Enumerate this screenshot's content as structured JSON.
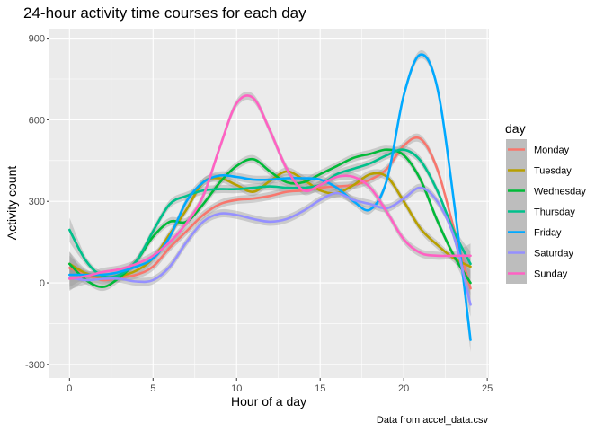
{
  "chart_data": {
    "type": "line",
    "title": "24-hour activity time courses for each day",
    "xlabel": "Hour of a day",
    "ylabel": "Activity count",
    "caption": "Data from accel_data.csv",
    "xlim": [
      -1.2,
      25.1
    ],
    "ylim": [
      -350,
      935
    ],
    "x_ticks": [
      0,
      5,
      10,
      15,
      20,
      25
    ],
    "x_tick_labels": [
      "0",
      "5",
      "10",
      "15",
      "20",
      "25"
    ],
    "y_ticks": [
      -300,
      0,
      300,
      600,
      900
    ],
    "y_tick_labels": [
      "-300",
      "0",
      "300",
      "600",
      "900"
    ],
    "grid": true,
    "legend": {
      "title": "day",
      "position": "right"
    },
    "series": [
      {
        "name": "Monday",
        "color": "#F8766D",
        "x": [
          0,
          1,
          2,
          3,
          4,
          5,
          6,
          7,
          8,
          9,
          10,
          11,
          12,
          13,
          14,
          15,
          16,
          17,
          18,
          19,
          20,
          21,
          22,
          23,
          24
        ],
        "y": [
          55,
          30,
          10,
          20,
          30,
          60,
          130,
          190,
          250,
          290,
          305,
          310,
          320,
          335,
          340,
          350,
          355,
          360,
          380,
          420,
          505,
          530,
          420,
          200,
          -20
        ]
      },
      {
        "name": "Tuesday",
        "color": "#B79F00",
        "x": [
          0,
          1,
          2,
          3,
          4,
          5,
          6,
          7,
          8,
          9,
          10,
          11,
          12,
          13,
          14,
          15,
          16,
          17,
          18,
          19,
          20,
          21,
          22,
          23,
          24
        ],
        "y": [
          70,
          35,
          20,
          25,
          45,
          90,
          180,
          270,
          370,
          385,
          360,
          335,
          375,
          410,
          380,
          340,
          330,
          360,
          400,
          390,
          300,
          200,
          140,
          90,
          60
        ]
      },
      {
        "name": "Wednesday",
        "color": "#00BA38",
        "x": [
          0,
          1,
          2,
          3,
          4,
          5,
          6,
          7,
          8,
          9,
          10,
          11,
          12,
          13,
          14,
          15,
          16,
          17,
          18,
          19,
          20,
          21,
          22,
          23,
          24
        ],
        "y": [
          70,
          10,
          -15,
          20,
          80,
          170,
          225,
          225,
          290,
          370,
          430,
          455,
          410,
          370,
          370,
          400,
          430,
          460,
          475,
          490,
          470,
          380,
          230,
          100,
          0
        ]
      },
      {
        "name": "Thursday",
        "color": "#00C08B",
        "x": [
          0,
          1,
          2,
          3,
          4,
          5,
          6,
          7,
          8,
          9,
          10,
          11,
          12,
          13,
          14,
          15,
          16,
          17,
          18,
          19,
          20,
          21,
          22,
          23,
          24
        ],
        "y": [
          195,
          80,
          25,
          30,
          80,
          190,
          290,
          320,
          340,
          345,
          345,
          350,
          355,
          350,
          350,
          360,
          400,
          420,
          440,
          470,
          490,
          450,
          340,
          190,
          70
        ]
      },
      {
        "name": "Friday",
        "color": "#00A9FF",
        "x": [
          0,
          1,
          2,
          3,
          4,
          5,
          6,
          7,
          8,
          9,
          10,
          11,
          12,
          13,
          14,
          15,
          16,
          17,
          18,
          19,
          20,
          21,
          22,
          23,
          24
        ],
        "y": [
          30,
          30,
          30,
          40,
          60,
          90,
          170,
          300,
          370,
          395,
          390,
          380,
          380,
          385,
          385,
          380,
          350,
          300,
          270,
          380,
          690,
          840,
          720,
          300,
          -210
        ]
      },
      {
        "name": "Saturday",
        "color": "#9590FF",
        "x": [
          0,
          1,
          2,
          3,
          4,
          5,
          6,
          7,
          8,
          9,
          10,
          11,
          12,
          13,
          14,
          15,
          16,
          17,
          18,
          19,
          20,
          21,
          22,
          23,
          24
        ],
        "y": [
          20,
          10,
          15,
          15,
          5,
          10,
          60,
          150,
          225,
          255,
          250,
          235,
          225,
          235,
          265,
          305,
          330,
          305,
          290,
          275,
          310,
          350,
          300,
          170,
          -80
        ]
      },
      {
        "name": "Sunday",
        "color": "#FF61C3",
        "x": [
          0,
          1,
          2,
          3,
          4,
          5,
          6,
          7,
          8,
          9,
          10,
          11,
          12,
          13,
          14,
          15,
          16,
          17,
          18,
          19,
          20,
          21,
          22,
          23,
          24
        ],
        "y": [
          15,
          25,
          40,
          50,
          70,
          100,
          150,
          220,
          320,
          500,
          660,
          680,
          560,
          420,
          340,
          360,
          390,
          390,
          350,
          260,
          160,
          110,
          100,
          100,
          100
        ]
      }
    ]
  }
}
